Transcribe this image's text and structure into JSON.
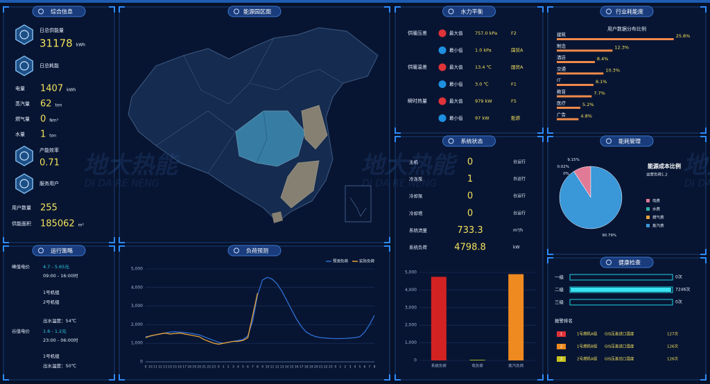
{
  "watermark": {
    "title": "地大热能",
    "subtitle": "DI DA RE NENG"
  },
  "overview": {
    "title": "综合信息",
    "supply_label": "日总供能量",
    "supply_value": 31178,
    "supply_unit": "kWh",
    "consume_label": "日总耗能",
    "metrics": [
      {
        "label": "电量",
        "value": 1407,
        "unit": "kWh"
      },
      {
        "label": "蒸汽量",
        "value": 62,
        "unit": "ton"
      },
      {
        "label": "燃气量",
        "value": 0,
        "unit": "Nm³"
      },
      {
        "label": "水量",
        "value": 1,
        "unit": "ton"
      }
    ],
    "efficiency_label": "产能效率",
    "efficiency_value": 0.71,
    "users_label": "服务用户",
    "user_count_label": "用户数量",
    "user_count": 255,
    "area_label": "供能面积",
    "area": 185062,
    "area_unit": "m²"
  },
  "map": {
    "title": "能源园区图"
  },
  "hydraulic": {
    "title": "水力平衡",
    "groups": [
      {
        "label": "供暖压差",
        "rows": [
          {
            "kind": "最大值",
            "value": "757.0 kPa",
            "location": "F2"
          },
          {
            "kind": "最小值",
            "value": "1.0 kPa",
            "location": "国贸A"
          }
        ]
      },
      {
        "label": "供暖温差",
        "rows": [
          {
            "kind": "最大值",
            "value": "13.4 ℃",
            "location": "国贸A"
          },
          {
            "kind": "最小值",
            "value": "3.0 ℃",
            "location": "F1"
          }
        ]
      },
      {
        "label": "瞬时热量",
        "rows": [
          {
            "kind": "最大值",
            "value": "979 kW",
            "location": "F5"
          },
          {
            "kind": "最小值",
            "value": "97 kW",
            "location": "能源"
          }
        ]
      }
    ]
  },
  "industry": {
    "title": "行业耗能度",
    "subtitle": "用户数据分布比例",
    "xlim": [
      0,
      26
    ],
    "items": [
      {
        "name": "建筑",
        "value": 25.8,
        "label": "25.8%"
      },
      {
        "name": "制造",
        "value": 12.3,
        "label": "12.3%"
      },
      {
        "name": "酒店",
        "value": 8.4,
        "label": "8.4%"
      },
      {
        "name": "交通",
        "value": 10.3,
        "label": "10.3%"
      },
      {
        "name": "IT",
        "value": 8.1,
        "label": "8.1%"
      },
      {
        "name": "教育",
        "value": 7.7,
        "label": "7.7%"
      },
      {
        "name": "医疗",
        "value": 5.2,
        "label": "5.2%"
      },
      {
        "name": "广告",
        "value": 4.8,
        "label": "4.8%"
      }
    ]
  },
  "system": {
    "title": "系统状态",
    "rows": [
      {
        "label": "主机",
        "value": 0,
        "unit": "台运行"
      },
      {
        "label": "冷冻泵",
        "value": 1,
        "unit": "台运行"
      },
      {
        "label": "冷却泵",
        "value": 0,
        "unit": "台运行"
      },
      {
        "label": "冷却塔",
        "value": 0,
        "unit": "台运行"
      },
      {
        "label": "系统流量",
        "value": 733.3,
        "unit": "m³/h"
      },
      {
        "label": "系统负荷",
        "value": 4798.8,
        "unit": "kW"
      }
    ]
  },
  "energy": {
    "title": "能耗管理"
  },
  "health": {
    "title": "健康检查",
    "xlim": [
      0,
      7300
    ],
    "levels": [
      {
        "name": "一级",
        "value": 0,
        "label": "0次"
      },
      {
        "name": "二级",
        "value": 7246,
        "label": "7246次"
      },
      {
        "name": "三级",
        "value": 0,
        "label": "0次"
      }
    ],
    "ranking_title": "报警排名",
    "ranking": [
      {
        "rank": "1",
        "device": "1号燃机A组",
        "item": "GIS压差进口温度",
        "count": "127次"
      },
      {
        "rank": "2",
        "device": "1号燃机B组",
        "item": "GIS压差进口温度",
        "count": "126次"
      },
      {
        "rank": "3",
        "device": "2号燃机A组",
        "item": "GIS压差出口温度",
        "count": "126次"
      }
    ]
  },
  "strategy": {
    "title": "运行策略",
    "peak_label": "峰值电价",
    "peak_price": "4.7 - 5.65元",
    "peak_time": "09:00 - 16:00时",
    "peak_units": [
      "1号机组",
      "2号机组"
    ],
    "peak_temp": "出水温度：54℃",
    "valley_label": "谷值电价",
    "valley_price": "1.6 - 1.2元",
    "valley_time": "23:00 - 06:00时",
    "valley_units": [
      "1号机组"
    ],
    "valley_temp": "出水温度：50℃"
  },
  "chart_data": [
    {
      "type": "line",
      "title": "负荷预测",
      "categories": [
        "9",
        "10",
        "11",
        "12",
        "13",
        "14",
        "15",
        "16",
        "17",
        "18",
        "19",
        "20",
        "21",
        "22",
        "23",
        "0",
        "1",
        "2",
        "3",
        "4",
        "5",
        "6",
        "7",
        "8",
        "9",
        "10",
        "11",
        "12",
        "13",
        "14",
        "15",
        "16",
        "17",
        "18",
        "19",
        "20",
        "21",
        "22",
        "23",
        "0",
        "1",
        "2",
        "3",
        "4",
        "5",
        "6",
        "7",
        "8"
      ],
      "series": [
        {
          "name": "预测负荷",
          "color": "#2f6fd6",
          "values": [
            1350,
            1380,
            1450,
            1500,
            1550,
            1600,
            1620,
            1600,
            1580,
            1550,
            1500,
            1450,
            1350,
            1250,
            1150,
            1050,
            1000,
            1050,
            1100,
            1150,
            1200,
            1400,
            2200,
            3600,
            4400,
            4550,
            4450,
            4200,
            3800,
            3300,
            2800,
            2300,
            1900,
            1600,
            1450,
            1350,
            1300,
            1280,
            1260,
            1250,
            1250,
            1260,
            1280,
            1300,
            1350,
            1600,
            2000,
            2500
          ]
        },
        {
          "name": "实际负荷",
          "color": "#e8a33a",
          "values": [
            1300,
            1400,
            1450,
            1500,
            1550,
            1500,
            1520,
            1550,
            1500,
            1450,
            1400,
            1350,
            1200,
            1100,
            1000,
            950,
            1000,
            1050,
            1100,
            1100,
            1150,
            1300,
            2500,
            3700,
            null,
            null,
            null,
            null,
            null,
            null,
            null,
            null,
            null,
            null,
            null,
            null,
            null,
            null,
            null,
            null,
            null,
            null,
            null,
            null,
            null,
            null,
            null,
            null
          ]
        }
      ],
      "ylim": [
        0,
        5000
      ],
      "yticks": [
        0,
        {
          "value": 1000,
          "label": "1,000"
        },
        {
          "value": 2000,
          "label": "2,000"
        },
        {
          "value": 3000,
          "label": "3,000"
        },
        {
          "value": 4000,
          "label": "4,000"
        },
        {
          "value": 5000,
          "label": "5,000"
        }
      ],
      "legend": "top-right"
    },
    {
      "type": "bar",
      "categories": [
        "系统负荷",
        "电负荷",
        "蒸汽负荷"
      ],
      "values": [
        4750,
        40,
        4900
      ],
      "colors": [
        "#d32222",
        "#a0b020",
        "#ee8a1f"
      ],
      "ylim": [
        0,
        5000
      ],
      "yticks": [
        0,
        {
          "value": 1000,
          "label": "1,000"
        },
        {
          "value": 2000,
          "label": "2,000"
        },
        {
          "value": 3000,
          "label": "3,000"
        },
        {
          "value": 4000,
          "label": "4,000"
        },
        {
          "value": 5000,
          "label": "5,000"
        }
      ]
    },
    {
      "type": "pie",
      "title": "能源成本比例",
      "subtitle": "运营负荷1.2",
      "categories": [
        "电费",
        "水费",
        "燃气费",
        "蒸汽费"
      ],
      "values": [
        9.15,
        0.02,
        0,
        90.79
      ],
      "value_labels": [
        "9.15%",
        "0.02%",
        "0%",
        "90.79%"
      ],
      "colors": [
        "#e07a96",
        "#2bb5a8",
        "#e8a33a",
        "#3a97d8"
      ]
    }
  ]
}
